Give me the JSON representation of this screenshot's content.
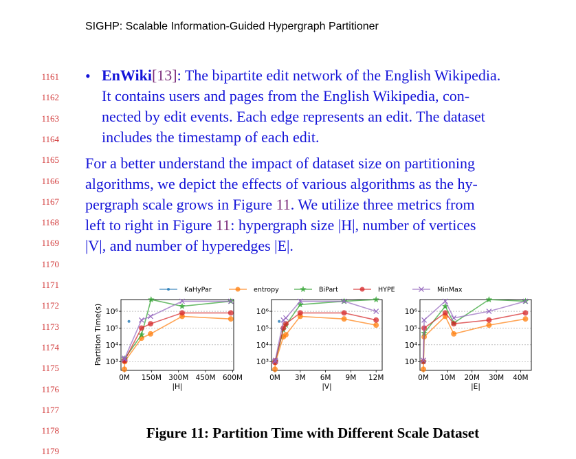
{
  "header": "SIGHP: Scalable Information-Guided Hypergraph Partitioner",
  "line_numbers": [
    "1161",
    "1162",
    "1163",
    "1164",
    "1165",
    "1166",
    "1167",
    "1168",
    "1169",
    "1170",
    "1171",
    "1172",
    "1173",
    "1174",
    "1175",
    "1176",
    "1177",
    "1178",
    "1179"
  ],
  "bullet": {
    "symbol": "•",
    "term": "EnWiki",
    "ref": "[13]",
    "line1_rest": ": The bipartite edit network of the English Wikipedia.",
    "line2": "It contains users and pages from the English Wikipedia, con-",
    "line3": "nected by edit events. Each edge represents an edit. The dataset",
    "line4": "includes the timestamp of each edit."
  },
  "paragraph": {
    "line1": "For a better understand the impact of dataset size on partitioning",
    "line2": "algorithms, we depict the effects of various algorithms as the hy-",
    "line3a": "pergraph scale grows in Figure ",
    "line3ref": "11",
    "line3b": ". We utilize three metrics from",
    "line4a": "left to right in Figure ",
    "line4ref": "11",
    "line4b": ": hypergraph size |H|, number of vertices",
    "line5": "|V|, and number of hyperedges |E|."
  },
  "caption": "Figure 11: Partition Time with Different Scale Dataset",
  "colors": {
    "text": "#1414d8",
    "lineno": "#d23a3a",
    "ref": "#7a2c7a"
  },
  "chart_data": {
    "type": "line",
    "ylabel": "Partition Time(s)",
    "yscale": "log",
    "ylim": [
      300,
      5000000
    ],
    "ytick_labels": [
      "10³",
      "10⁴",
      "10⁵",
      "10⁶"
    ],
    "ytick_values": [
      1000,
      10000,
      100000,
      1000000
    ],
    "grid": "y",
    "legend": "top",
    "legend_entries": [
      {
        "name": "KaHyPar",
        "color": "#1f77b4",
        "marker": "dot"
      },
      {
        "name": "entropy",
        "color": "#ff7f0e",
        "marker": "circle"
      },
      {
        "name": "BiPart",
        "color": "#2ca02c",
        "marker": "star"
      },
      {
        "name": "HYPE",
        "color": "#d62728",
        "marker": "circle"
      },
      {
        "name": "MinMax",
        "color": "#9467bd",
        "marker": "x"
      }
    ],
    "panels": [
      {
        "xlabel": "|H|",
        "xlim": [
          0,
          600
        ],
        "xtick_values": [
          0,
          150,
          300,
          450,
          600
        ],
        "xtick_labels": [
          "0M",
          "150M",
          "300M",
          "450M",
          "600M"
        ],
        "series": [
          {
            "name": "KaHyPar",
            "x": [
              0,
              25
            ],
            "y": [
              1200,
              250000
            ]
          },
          {
            "name": "entropy",
            "x": [
              0,
              2,
              95,
              145,
              320,
              590
            ],
            "y": [
              350,
              1000,
              25000,
              45000,
              500000,
              350000
            ]
          },
          {
            "name": "BiPart",
            "x": [
              0,
              2,
              95,
              148,
              320,
              590
            ],
            "y": [
              1200,
              1500,
              40000,
              5000000,
              2000000,
              4000000
            ]
          },
          {
            "name": "HYPE",
            "x": [
              0,
              2,
              95,
              145,
              320,
              590
            ],
            "y": [
              1100,
              1200,
              100000,
              180000,
              800000,
              800000
            ]
          },
          {
            "name": "MinMax",
            "x": [
              0,
              2,
              95,
              145,
              320,
              590
            ],
            "y": [
              1400,
              1600,
              300000,
              500000,
              4000000,
              4000000
            ]
          }
        ]
      },
      {
        "xlabel": "|V|",
        "xlim": [
          0,
          12.6
        ],
        "xtick_values": [
          0,
          3,
          6,
          9,
          12
        ],
        "xtick_labels": [
          "0M",
          "3M",
          "6M",
          "9M",
          "12M"
        ],
        "series": [
          {
            "name": "KaHyPar",
            "x": [
              0,
              0.5
            ],
            "y": [
              1000,
              250000
            ]
          },
          {
            "name": "entropy",
            "x": [
              0,
              0.05,
              1,
              1.3,
              3,
              8.2,
              12
            ],
            "y": [
              350,
              900,
              30000,
              40000,
              500000,
              350000,
              150000
            ]
          },
          {
            "name": "BiPart",
            "x": [
              0,
              0.05,
              1,
              1.3,
              3,
              8.2,
              12
            ],
            "y": [
              1000,
              1100,
              80000,
              150000,
              2500000,
              4000000,
              5000000
            ]
          },
          {
            "name": "HYPE",
            "x": [
              0,
              0.05,
              1,
              1.3,
              3,
              8.2,
              12
            ],
            "y": [
              900,
              1100,
              100000,
              180000,
              800000,
              800000,
              300000
            ]
          },
          {
            "name": "MinMax",
            "x": [
              0,
              0.05,
              1,
              1.3,
              3,
              8.2,
              12
            ],
            "y": [
              1000,
              1200,
              300000,
              400000,
              4000000,
              4000000,
              1000000
            ]
          }
        ]
      },
      {
        "xlabel": "|E|",
        "xlim": [
          0,
          44
        ],
        "xtick_values": [
          0,
          10,
          20,
          30,
          40
        ],
        "xtick_labels": [
          "0M",
          "10M",
          "20M",
          "30M",
          "40M"
        ],
        "series": [
          {
            "name": "KaHyPar",
            "x": [
              0
            ],
            "y": [
              1000
            ]
          },
          {
            "name": "entropy",
            "x": [
              0,
              0.3,
              9,
              12.5,
              27,
              42
            ],
            "y": [
              350,
              30000,
              500000,
              45000,
              150000,
              350000
            ]
          },
          {
            "name": "BiPart",
            "x": [
              0,
              0.3,
              9,
              12.5,
              27,
              42
            ],
            "y": [
              1000,
              50000,
              2000000,
              200000,
              5000000,
              4000000
            ]
          },
          {
            "name": "HYPE",
            "x": [
              0,
              0.3,
              9,
              12.5,
              27,
              42
            ],
            "y": [
              1000,
              100000,
              800000,
              180000,
              300000,
              800000
            ]
          },
          {
            "name": "MinMax",
            "x": [
              0,
              0.3,
              9,
              12.5,
              27,
              42
            ],
            "y": [
              1200,
              300000,
              4000000,
              400000,
              1000000,
              4000000
            ]
          }
        ]
      }
    ]
  }
}
